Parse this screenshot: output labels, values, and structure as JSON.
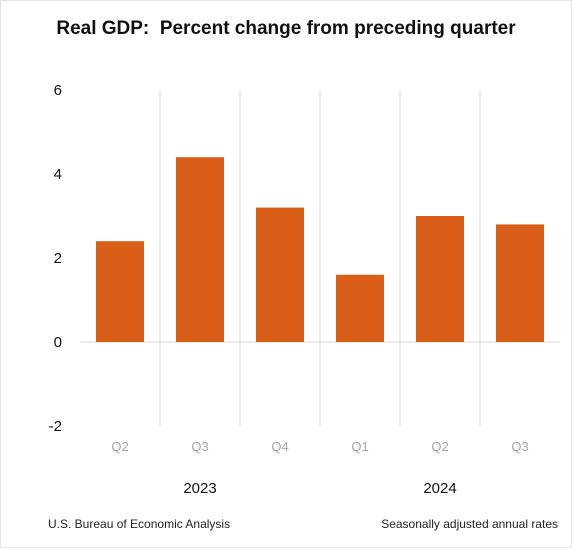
{
  "chart_data": {
    "type": "bar",
    "title": "Real GDP:  Percent change from preceding quarter",
    "categories": [
      "Q2",
      "Q3",
      "Q4",
      "Q1",
      "Q2",
      "Q3"
    ],
    "years": [
      {
        "label": "2023",
        "span": [
          0,
          2
        ]
      },
      {
        "label": "2024",
        "span": [
          3,
          5
        ]
      }
    ],
    "values": [
      2.4,
      4.4,
      3.2,
      1.6,
      3.0,
      2.8
    ],
    "ylim": [
      -2,
      6
    ],
    "yticks": [
      -2,
      0,
      2,
      4,
      6
    ],
    "xlabel": "",
    "ylabel": "",
    "bar_color": "#d95f18",
    "grid": "vertical",
    "legend": "none"
  },
  "footer": {
    "source": "U.S. Bureau of Economic Analysis",
    "note": "Seasonally adjusted annual rates"
  }
}
